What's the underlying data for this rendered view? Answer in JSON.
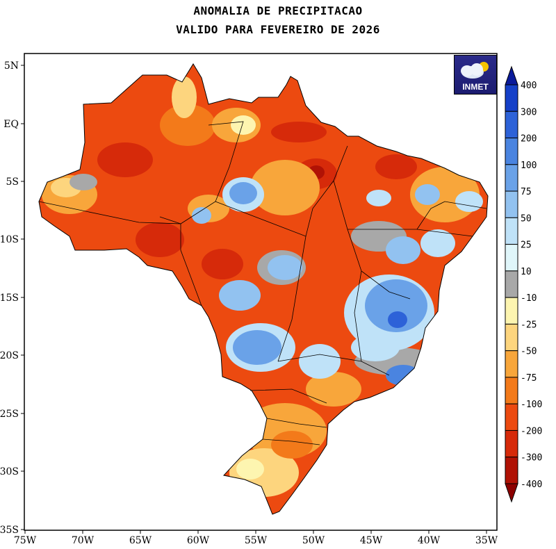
{
  "title_line1": "ANOMALIA DE PRECIPITACAO",
  "title_line2": "VALIDO PARA FEVEREIRO DE 2026",
  "logo_text": "INMET",
  "y_ticks": [
    "5N",
    "EQ",
    "5S",
    "10S",
    "15S",
    "20S",
    "25S",
    "30S",
    "35S"
  ],
  "x_ticks": [
    "75W",
    "70W",
    "65W",
    "60W",
    "55W",
    "50W",
    "45W",
    "40W",
    "35W"
  ],
  "colorbar": {
    "labels": [
      "400",
      "300",
      "200",
      "100",
      "75",
      "50",
      "25",
      "10",
      "-10",
      "-25",
      "-50",
      "-75",
      "-100",
      "-200",
      "-300",
      "-400"
    ],
    "colors": [
      "#0a1a9a",
      "#1540c8",
      "#2d62d8",
      "#4a84e0",
      "#6aa2e8",
      "#92c2f0",
      "#bfe2f8",
      "#e0f6fa",
      "#a8a8a8",
      "#fdf5b0",
      "#fdd57e",
      "#f8a63b",
      "#f37a1a",
      "#ec4a10",
      "#d62a0a",
      "#b01205",
      "#8c0000"
    ]
  },
  "map_region": "Brasil"
}
